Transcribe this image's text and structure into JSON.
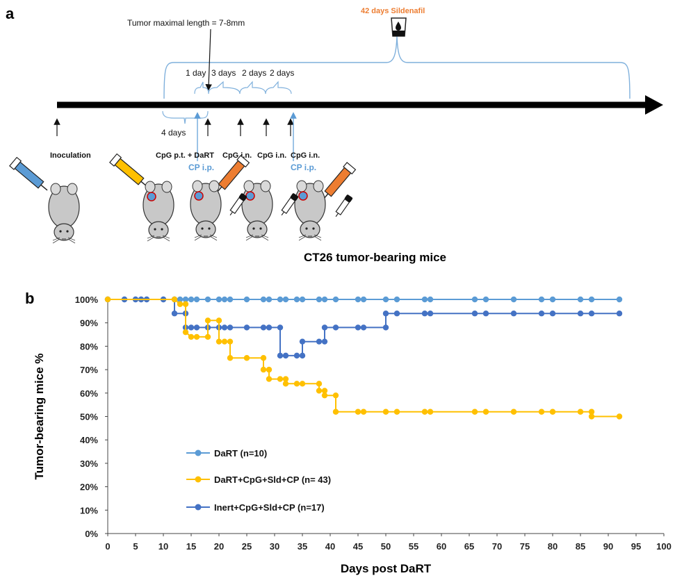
{
  "panel_a": {
    "letter": "a",
    "tumor_length_label": "Tumor maximal length = 7-8mm",
    "sildenafil_label": "42 days Sildenafil",
    "interval_labels": [
      "1 day",
      "3 days",
      "2 days",
      "2 days"
    ],
    "four_days_label": "4 days",
    "events": {
      "inoculation": "Inoculation",
      "cpg_pt_dart": "CpG p.t. + DaRT",
      "cpg_in_1": "CpG i.n.",
      "cpg_in_2": "CpG i.n.",
      "cpg_in_3": "CpG i.n.",
      "cp_ip_1": "CP i.p.",
      "cp_ip_2": "CP i.p."
    },
    "model_title": "CT26 tumor-bearing mice",
    "colors": {
      "blue": "#5b9bd5",
      "orange": "#ed7d31",
      "yellow": "#ffc000",
      "dark_blue": "#4472c4"
    }
  },
  "panel_b": {
    "letter": "b"
  },
  "chart_data": {
    "type": "line",
    "step": true,
    "xlabel": "Days post DaRT",
    "ylabel": "Tumor-bearing mice %",
    "xlim": [
      0,
      100
    ],
    "ylim": [
      0,
      100
    ],
    "x_ticks": [
      0,
      5,
      10,
      15,
      20,
      25,
      30,
      35,
      40,
      45,
      50,
      55,
      60,
      65,
      70,
      75,
      80,
      85,
      90,
      95,
      100
    ],
    "y_ticks": [
      "0%",
      "10%",
      "20%",
      "30%",
      "40%",
      "50%",
      "60%",
      "70%",
      "80%",
      "90%",
      "100%"
    ],
    "legend_position": "bottom-left",
    "series": [
      {
        "name": "DaRT (n=10)",
        "color": "#5b9bd5",
        "points": [
          [
            0,
            100
          ],
          [
            3,
            100
          ],
          [
            5,
            100
          ],
          [
            6,
            100
          ],
          [
            7,
            100
          ],
          [
            10,
            100
          ],
          [
            12,
            100
          ],
          [
            13,
            100
          ],
          [
            14,
            100
          ],
          [
            15,
            100
          ],
          [
            16,
            100
          ],
          [
            18,
            100
          ],
          [
            20,
            100
          ],
          [
            21,
            100
          ],
          [
            22,
            100
          ],
          [
            25,
            100
          ],
          [
            28,
            100
          ],
          [
            29,
            100
          ],
          [
            31,
            100
          ],
          [
            32,
            100
          ],
          [
            34,
            100
          ],
          [
            35,
            100
          ],
          [
            38,
            100
          ],
          [
            39,
            100
          ],
          [
            41,
            100
          ],
          [
            45,
            100
          ],
          [
            46,
            100
          ],
          [
            50,
            100
          ],
          [
            52,
            100
          ],
          [
            57,
            100
          ],
          [
            58,
            100
          ],
          [
            66,
            100
          ],
          [
            68,
            100
          ],
          [
            73,
            100
          ],
          [
            78,
            100
          ],
          [
            80,
            100
          ],
          [
            85,
            100
          ],
          [
            87,
            100
          ],
          [
            92,
            100
          ]
        ]
      },
      {
        "name": "DaRT+CpG+Sld+CP (n= 43)",
        "color": "#ffc000",
        "points": [
          [
            0,
            100
          ],
          [
            12,
            100
          ],
          [
            13,
            98
          ],
          [
            14,
            98
          ],
          [
            14,
            86
          ],
          [
            15,
            84
          ],
          [
            16,
            84
          ],
          [
            18,
            84
          ],
          [
            18,
            91
          ],
          [
            20,
            91
          ],
          [
            20,
            82
          ],
          [
            21,
            82
          ],
          [
            22,
            82
          ],
          [
            22,
            75
          ],
          [
            25,
            75
          ],
          [
            28,
            75
          ],
          [
            28,
            70
          ],
          [
            29,
            70
          ],
          [
            29,
            66
          ],
          [
            31,
            66
          ],
          [
            32,
            66
          ],
          [
            32,
            64
          ],
          [
            34,
            64
          ],
          [
            35,
            64
          ],
          [
            38,
            64
          ],
          [
            38,
            61
          ],
          [
            39,
            61
          ],
          [
            39,
            59
          ],
          [
            41,
            59
          ],
          [
            41,
            52
          ],
          [
            45,
            52
          ],
          [
            46,
            52
          ],
          [
            50,
            52
          ],
          [
            52,
            52
          ],
          [
            57,
            52
          ],
          [
            58,
            52
          ],
          [
            66,
            52
          ],
          [
            68,
            52
          ],
          [
            73,
            52
          ],
          [
            78,
            52
          ],
          [
            80,
            52
          ],
          [
            85,
            52
          ],
          [
            87,
            52
          ],
          [
            87,
            50
          ],
          [
            92,
            50
          ]
        ]
      },
      {
        "name": "Inert+CpG+Sld+CP (n=17)",
        "color": "#4472c4",
        "points": [
          [
            0,
            100
          ],
          [
            3,
            100
          ],
          [
            5,
            100
          ],
          [
            6,
            100
          ],
          [
            7,
            100
          ],
          [
            10,
            100
          ],
          [
            12,
            100
          ],
          [
            12,
            94
          ],
          [
            14,
            94
          ],
          [
            14,
            88
          ],
          [
            15,
            88
          ],
          [
            16,
            88
          ],
          [
            18,
            88
          ],
          [
            20,
            88
          ],
          [
            21,
            88
          ],
          [
            22,
            88
          ],
          [
            25,
            88
          ],
          [
            28,
            88
          ],
          [
            29,
            88
          ],
          [
            31,
            88
          ],
          [
            31,
            76
          ],
          [
            32,
            76
          ],
          [
            34,
            76
          ],
          [
            35,
            76
          ],
          [
            35,
            82
          ],
          [
            38,
            82
          ],
          [
            39,
            82
          ],
          [
            39,
            88
          ],
          [
            41,
            88
          ],
          [
            45,
            88
          ],
          [
            46,
            88
          ],
          [
            50,
            88
          ],
          [
            50,
            94
          ],
          [
            52,
            94
          ],
          [
            57,
            94
          ],
          [
            58,
            94
          ],
          [
            66,
            94
          ],
          [
            68,
            94
          ],
          [
            73,
            94
          ],
          [
            78,
            94
          ],
          [
            80,
            94
          ],
          [
            85,
            94
          ],
          [
            87,
            94
          ],
          [
            92,
            94
          ]
        ]
      }
    ]
  }
}
